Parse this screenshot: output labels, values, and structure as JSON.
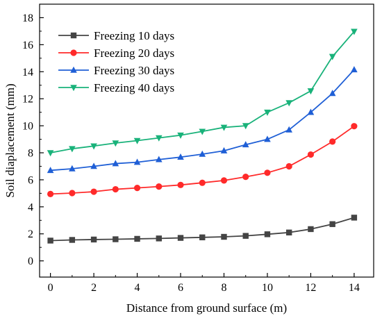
{
  "chart_data": {
    "type": "line",
    "title": "",
    "xlabel": "Distance from ground surface (m)",
    "ylabel": "Soil diaplacement (mm)",
    "xlim": [
      -0.5,
      14.9
    ],
    "ylim": [
      -1.2,
      19
    ],
    "x_ticks": [
      0,
      2,
      4,
      6,
      8,
      10,
      12,
      14
    ],
    "y_ticks": [
      0,
      2,
      4,
      6,
      8,
      10,
      12,
      14,
      16,
      18
    ],
    "grid": false,
    "legend_position": "top-left",
    "x": [
      0,
      1,
      2,
      3,
      4,
      5,
      6,
      7,
      8,
      9,
      10,
      11,
      12,
      13,
      14
    ],
    "series": [
      {
        "name": "Freezing 10 days",
        "color": "#444444",
        "marker": "square",
        "values": [
          1.5,
          1.55,
          1.58,
          1.6,
          1.63,
          1.66,
          1.7,
          1.74,
          1.78,
          1.85,
          1.97,
          2.1,
          2.35,
          2.72,
          3.2
        ]
      },
      {
        "name": "Freezing 20 days",
        "color": "#ff2a2a",
        "marker": "circle",
        "values": [
          4.95,
          5.02,
          5.12,
          5.3,
          5.4,
          5.5,
          5.62,
          5.78,
          5.95,
          6.22,
          6.52,
          7.0,
          7.87,
          8.83,
          9.97
        ]
      },
      {
        "name": "Freezing 30 days",
        "color": "#1f5fd6",
        "marker": "triangle-up",
        "values": [
          6.7,
          6.82,
          7.0,
          7.2,
          7.3,
          7.5,
          7.68,
          7.9,
          8.15,
          8.6,
          9.0,
          9.7,
          11.0,
          12.4,
          14.15
        ]
      },
      {
        "name": "Freezing 40 days",
        "color": "#19b27a",
        "marker": "triangle-down",
        "values": [
          8.0,
          8.3,
          8.5,
          8.72,
          8.9,
          9.1,
          9.3,
          9.58,
          9.88,
          10.0,
          11.0,
          11.7,
          12.58,
          15.12,
          16.98
        ]
      }
    ]
  }
}
